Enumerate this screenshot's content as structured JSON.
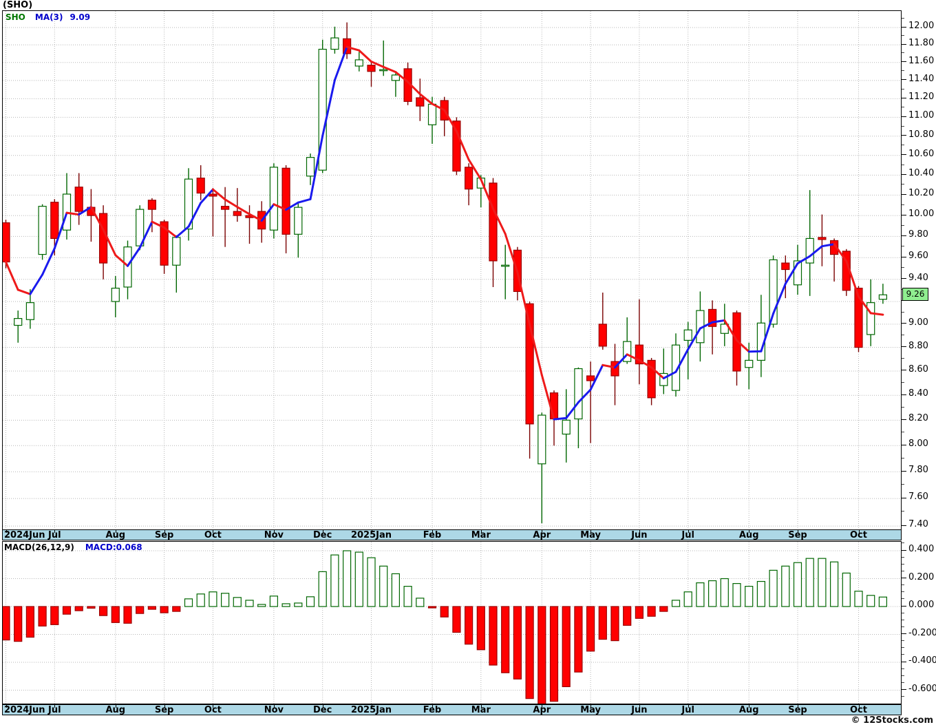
{
  "window": {
    "title": "(SHO)"
  },
  "price_panel": {
    "legend": {
      "symbol": "SHO",
      "ma_label": "MA(3)",
      "ma_value": "9.09"
    },
    "last_price_tag": "9.26",
    "axis": {
      "scale": "log",
      "tick_min": 7.4,
      "tick_max": 12.0,
      "tick_step": 0.2,
      "minor_step": 0.1,
      "hidden_label": 9.2
    }
  },
  "macd_panel": {
    "legend": {
      "label": "MACD(26,12,9)",
      "value": "MACD:0.068"
    },
    "axis": {
      "tick_min": -0.6,
      "tick_max": 0.4,
      "tick_step": 0.2,
      "minor_step": 0.05
    }
  },
  "footer": {
    "copyright": "© 12Stocks.com"
  },
  "colors": {
    "up_fill": "#ffffff",
    "up_outline": "#006600",
    "down_fill": "#ff0000",
    "down_outline": "#990000",
    "down_wick": "#7a0000",
    "ma_rising": "#1a1aee",
    "ma_falling": "#ee1a1a",
    "grid": "#b5b5b5",
    "axis_strip": "#add8e6",
    "tag_bg": "#90ee90",
    "legend_symbol": "#007700",
    "legend_blue": "#0000cc"
  },
  "chart_data": {
    "type": "candlestick_with_macd",
    "symbol": "SHO",
    "interval": "weekly",
    "title": "(SHO)",
    "price_axis_ticks": [
      12.0,
      11.8,
      11.6,
      11.4,
      11.2,
      11.0,
      10.8,
      10.6,
      10.4,
      10.2,
      10.0,
      9.8,
      9.6,
      9.4,
      9.2,
      9.0,
      8.8,
      8.6,
      8.4,
      8.2,
      8.0,
      7.8,
      7.6,
      7.4
    ],
    "macd_axis_ticks": [
      0.4,
      0.2,
      0.0,
      -0.2,
      -0.4,
      -0.6
    ],
    "last_close": 9.26,
    "ma3_last": 9.09,
    "macd_last": 0.068,
    "x_months": [
      {
        "label": "2024Jun",
        "week": 0
      },
      {
        "label": "Jul",
        "week": 4
      },
      {
        "label": "Aug",
        "week": 9
      },
      {
        "label": "Sep",
        "week": 13
      },
      {
        "label": "Oct",
        "week": 17
      },
      {
        "label": "Nov",
        "week": 22
      },
      {
        "label": "Dec",
        "week": 26
      },
      {
        "label": "2025Jan",
        "week": 30
      },
      {
        "label": "Feb",
        "week": 35
      },
      {
        "label": "Mar",
        "week": 39
      },
      {
        "label": "Apr",
        "week": 44
      },
      {
        "label": "May",
        "week": 48
      },
      {
        "label": "Jun",
        "week": 52
      },
      {
        "label": "Jul",
        "week": 56
      },
      {
        "label": "Aug",
        "week": 61
      },
      {
        "label": "Sep",
        "week": 65
      },
      {
        "label": "Oct",
        "week": 70
      }
    ],
    "candles_ohlc": [
      [
        9.93,
        9.96,
        9.5,
        9.56
      ],
      [
        8.99,
        9.12,
        8.84,
        9.05
      ],
      [
        9.04,
        9.31,
        8.96,
        9.19
      ],
      [
        9.63,
        10.11,
        9.58,
        10.09
      ],
      [
        10.13,
        10.16,
        9.62,
        9.78
      ],
      [
        9.86,
        10.42,
        9.77,
        10.21
      ],
      [
        10.28,
        10.42,
        9.91,
        10.04
      ],
      [
        10.08,
        10.26,
        9.75,
        10.0
      ],
      [
        10.02,
        10.1,
        9.4,
        9.55
      ],
      [
        9.2,
        9.43,
        9.06,
        9.32
      ],
      [
        9.33,
        9.76,
        9.22,
        9.7
      ],
      [
        9.71,
        10.1,
        9.67,
        10.06
      ],
      [
        10.15,
        10.17,
        9.84,
        10.06
      ],
      [
        9.94,
        9.96,
        9.45,
        9.53
      ],
      [
        9.53,
        9.81,
        9.28,
        9.79
      ],
      [
        9.87,
        10.47,
        9.76,
        10.36
      ],
      [
        10.37,
        10.5,
        10.15,
        10.22
      ],
      [
        10.21,
        10.27,
        9.8,
        10.19
      ],
      [
        10.09,
        10.28,
        9.7,
        10.06
      ],
      [
        10.04,
        10.27,
        9.94,
        10.0
      ],
      [
        10.0,
        10.1,
        9.73,
        9.98
      ],
      [
        10.04,
        10.14,
        9.74,
        9.87
      ],
      [
        9.86,
        10.52,
        9.78,
        10.48
      ],
      [
        10.47,
        10.5,
        9.64,
        9.82
      ],
      [
        9.82,
        10.12,
        9.6,
        10.08
      ],
      [
        10.39,
        10.62,
        10.3,
        10.58
      ],
      [
        10.45,
        11.86,
        10.42,
        11.75
      ],
      [
        11.75,
        12.01,
        11.7,
        11.88
      ],
      [
        11.87,
        12.06,
        11.64,
        11.7
      ],
      [
        11.56,
        11.72,
        11.5,
        11.63
      ],
      [
        11.57,
        11.62,
        11.33,
        11.5
      ],
      [
        11.52,
        11.85,
        11.45,
        11.52
      ],
      [
        11.4,
        11.48,
        11.22,
        11.46
      ],
      [
        11.53,
        11.6,
        11.13,
        11.17
      ],
      [
        11.21,
        11.42,
        10.96,
        11.12
      ],
      [
        10.92,
        11.22,
        10.72,
        11.14
      ],
      [
        11.18,
        11.22,
        10.8,
        10.97
      ],
      [
        10.96,
        11.0,
        10.4,
        10.44
      ],
      [
        10.48,
        10.52,
        10.1,
        10.26
      ],
      [
        10.27,
        10.4,
        10.08,
        10.37
      ],
      [
        10.32,
        10.37,
        9.33,
        9.57
      ],
      [
        9.53,
        9.72,
        9.22,
        9.53
      ],
      [
        9.67,
        9.7,
        9.21,
        9.29
      ],
      [
        9.18,
        9.2,
        7.9,
        8.17
      ],
      [
        7.86,
        8.26,
        7.42,
        8.24
      ],
      [
        8.42,
        8.44,
        8.0,
        8.21
      ],
      [
        8.09,
        8.45,
        7.87,
        8.2
      ],
      [
        8.21,
        8.63,
        7.98,
        8.62
      ],
      [
        8.56,
        8.68,
        8.02,
        8.52
      ],
      [
        9.0,
        9.28,
        8.78,
        8.81
      ],
      [
        8.68,
        8.83,
        8.32,
        8.56
      ],
      [
        8.68,
        9.06,
        8.66,
        8.85
      ],
      [
        8.82,
        9.22,
        8.49,
        8.66
      ],
      [
        8.69,
        8.71,
        8.32,
        8.38
      ],
      [
        8.48,
        8.79,
        8.41,
        8.58
      ],
      [
        8.44,
        8.92,
        8.39,
        8.82
      ],
      [
        8.86,
        9.02,
        8.53,
        8.95
      ],
      [
        8.84,
        9.29,
        8.68,
        9.12
      ],
      [
        9.13,
        9.21,
        8.74,
        8.98
      ],
      [
        8.92,
        9.18,
        8.81,
        9.0
      ],
      [
        9.1,
        9.12,
        8.48,
        8.6
      ],
      [
        8.63,
        8.84,
        8.45,
        8.69
      ],
      [
        8.69,
        9.26,
        8.55,
        9.01
      ],
      [
        9.0,
        9.62,
        8.97,
        9.58
      ],
      [
        9.55,
        9.62,
        9.23,
        9.49
      ],
      [
        9.35,
        9.72,
        9.26,
        9.57
      ],
      [
        9.55,
        10.25,
        9.25,
        9.78
      ],
      [
        9.79,
        10.01,
        9.52,
        9.77
      ],
      [
        9.76,
        9.78,
        9.38,
        9.63
      ],
      [
        9.66,
        9.68,
        9.25,
        9.3
      ],
      [
        9.32,
        9.34,
        8.76,
        8.8
      ],
      [
        8.91,
        9.4,
        8.81,
        9.19
      ],
      [
        9.22,
        9.36,
        9.18,
        9.26
      ]
    ],
    "macd_histogram": [
      -0.24,
      -0.25,
      -0.22,
      -0.14,
      -0.13,
      -0.055,
      -0.03,
      -0.012,
      -0.065,
      -0.115,
      -0.12,
      -0.05,
      -0.02,
      -0.045,
      -0.035,
      0.055,
      0.09,
      0.105,
      0.095,
      0.065,
      0.045,
      0.015,
      0.075,
      0.02,
      0.025,
      0.07,
      0.25,
      0.37,
      0.4,
      0.39,
      0.35,
      0.29,
      0.235,
      0.145,
      0.06,
      -0.005,
      -0.075,
      -0.185,
      -0.27,
      -0.31,
      -0.42,
      -0.475,
      -0.52,
      -0.66,
      -0.715,
      -0.68,
      -0.575,
      -0.47,
      -0.32,
      -0.235,
      -0.245,
      -0.135,
      -0.085,
      -0.07,
      -0.035,
      0.045,
      0.105,
      0.17,
      0.185,
      0.2,
      0.165,
      0.145,
      0.18,
      0.26,
      0.29,
      0.315,
      0.345,
      0.345,
      0.32,
      0.24,
      0.11,
      0.08,
      0.068
    ],
    "ma_note": "MA(3) of weekly closes; drawn blue when rising, red when falling"
  }
}
